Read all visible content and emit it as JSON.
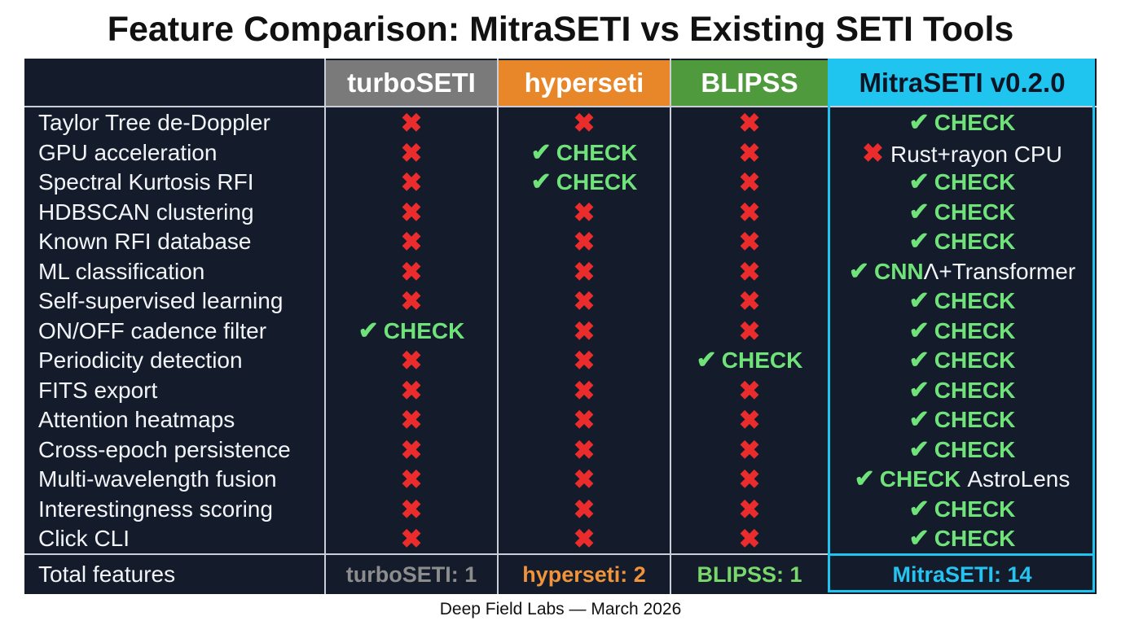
{
  "title": "Feature Comparison: MitraSETI vs Existing SETI Tools",
  "columns": [
    {
      "label": "turboSETI",
      "color": "#7a7a7a"
    },
    {
      "label": "hyperseti",
      "color": "#e8862a"
    },
    {
      "label": "BLIPSS",
      "color": "#4f9a3c"
    },
    {
      "label": "MitraSETI v0.2.0",
      "color": "#1fc4ef"
    }
  ],
  "check_label": "CHECK",
  "check_icon": "check-icon",
  "cross_icon": "cross-icon",
  "rows": [
    {
      "feature": "Taylor Tree de-Doppler",
      "cells": [
        {
          "mark": "x"
        },
        {
          "mark": "x"
        },
        {
          "mark": "x"
        },
        {
          "mark": "check",
          "extra": ""
        }
      ]
    },
    {
      "feature": "GPU acceleration",
      "cells": [
        {
          "mark": "x"
        },
        {
          "mark": "check",
          "extra": ""
        },
        {
          "mark": "x"
        },
        {
          "mark": "x",
          "text": "Rust+rayon CPU"
        }
      ]
    },
    {
      "feature": "Spectral Kurtosis RFI",
      "cells": [
        {
          "mark": "x"
        },
        {
          "mark": "check",
          "extra": ""
        },
        {
          "mark": "x"
        },
        {
          "mark": "check",
          "extra": ""
        }
      ]
    },
    {
      "feature": "HDBSCAN clustering",
      "cells": [
        {
          "mark": "x"
        },
        {
          "mark": "x"
        },
        {
          "mark": "x"
        },
        {
          "mark": "check",
          "extra": ""
        }
      ]
    },
    {
      "feature": "Known RFI database",
      "cells": [
        {
          "mark": "x"
        },
        {
          "mark": "x"
        },
        {
          "mark": "x"
        },
        {
          "mark": "check",
          "extra": ""
        }
      ]
    },
    {
      "feature": "ML classification",
      "cells": [
        {
          "mark": "x"
        },
        {
          "mark": "x"
        },
        {
          "mark": "x"
        },
        {
          "mark": "check",
          "label": "CNN",
          "extra": "Λ+Transformer"
        }
      ]
    },
    {
      "feature": "Self-supervised learning",
      "cells": [
        {
          "mark": "x"
        },
        {
          "mark": "x"
        },
        {
          "mark": "x"
        },
        {
          "mark": "check",
          "extra": ""
        }
      ]
    },
    {
      "feature": "ON/OFF cadence filter",
      "cells": [
        {
          "mark": "check",
          "extra": ""
        },
        {
          "mark": "x"
        },
        {
          "mark": "x"
        },
        {
          "mark": "check",
          "extra": ""
        }
      ]
    },
    {
      "feature": "Periodicity detection",
      "cells": [
        {
          "mark": "x"
        },
        {
          "mark": "x"
        },
        {
          "mark": "check",
          "extra": ""
        },
        {
          "mark": "check",
          "extra": ""
        }
      ]
    },
    {
      "feature": "FITS export",
      "cells": [
        {
          "mark": "x"
        },
        {
          "mark": "x"
        },
        {
          "mark": "x"
        },
        {
          "mark": "check",
          "extra": ""
        }
      ]
    },
    {
      "feature": "Attention heatmaps",
      "cells": [
        {
          "mark": "x"
        },
        {
          "mark": "x"
        },
        {
          "mark": "x"
        },
        {
          "mark": "check",
          "extra": ""
        }
      ]
    },
    {
      "feature": "Cross-epoch persistence",
      "cells": [
        {
          "mark": "x"
        },
        {
          "mark": "x"
        },
        {
          "mark": "x"
        },
        {
          "mark": "check",
          "extra": ""
        }
      ]
    },
    {
      "feature": "Multi-wavelength fusion",
      "cells": [
        {
          "mark": "x"
        },
        {
          "mark": "x"
        },
        {
          "mark": "x"
        },
        {
          "mark": "check",
          "extra": "AstroLens"
        }
      ]
    },
    {
      "feature": "Interestingness scoring",
      "cells": [
        {
          "mark": "x"
        },
        {
          "mark": "x"
        },
        {
          "mark": "x"
        },
        {
          "mark": "check",
          "extra": ""
        }
      ]
    },
    {
      "feature": "Click CLI",
      "cells": [
        {
          "mark": "x"
        },
        {
          "mark": "x"
        },
        {
          "mark": "x"
        },
        {
          "mark": "check",
          "extra": ""
        }
      ]
    }
  ],
  "totals": {
    "label": "Total features",
    "values": [
      "turboSETI: 1",
      "hyperseti: 2",
      "BLIPSS: 1",
      "MitraSETI: 14"
    ]
  },
  "footer": "Deep Field Labs — March 2026"
}
